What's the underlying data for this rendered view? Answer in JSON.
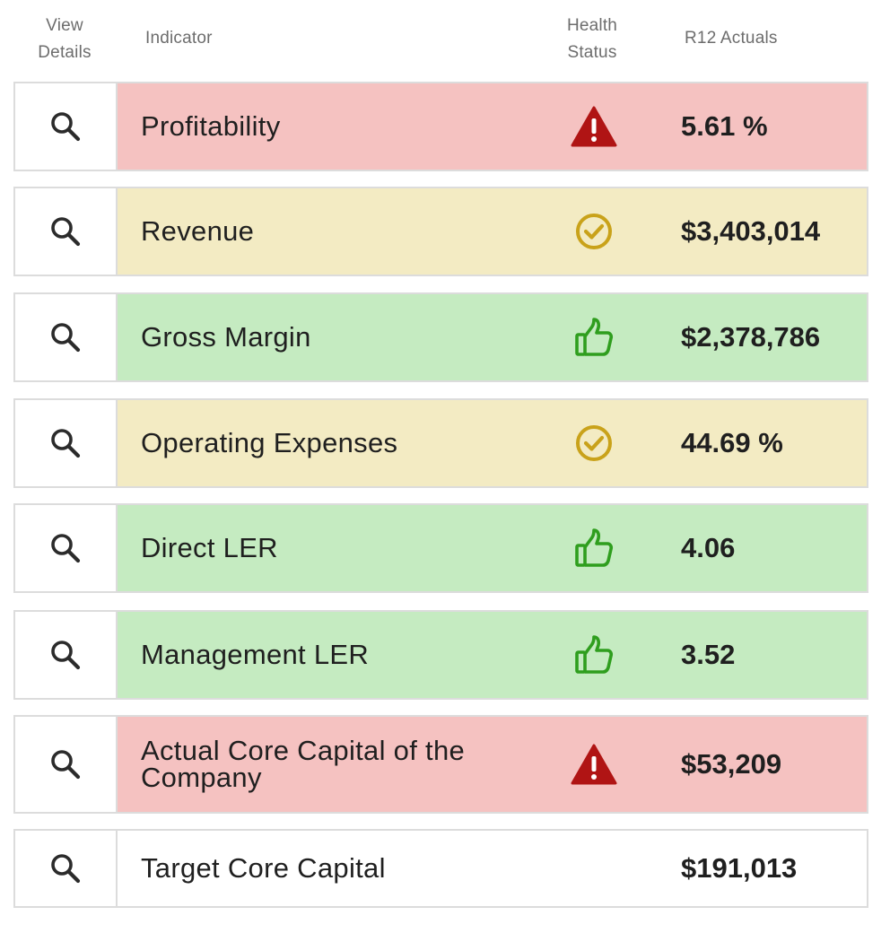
{
  "headers": {
    "view_details": "View\nDetails",
    "indicator": "Indicator",
    "health_status": "Health\nStatus",
    "r12_actuals": "R12 Actuals"
  },
  "colors": {
    "red": "#f5c2c1",
    "yellow": "#f3ebc3",
    "green": "#c5ebc1",
    "warning_icon": "#b01414",
    "check_icon": "#c9a21a",
    "thumb_icon": "#2f9e1e"
  },
  "rows": [
    {
      "indicator": "Profitability",
      "status": "red",
      "icon": "warning-icon",
      "actual": "5.61 %"
    },
    {
      "indicator": "Revenue",
      "status": "yellow",
      "icon": "check-circle-icon",
      "actual": "$3,403,014"
    },
    {
      "indicator": "Gross Margin",
      "status": "green",
      "icon": "thumbs-up-icon",
      "actual": "$2,378,786"
    },
    {
      "indicator": "Operating Expenses",
      "status": "yellow",
      "icon": "check-circle-icon",
      "actual": "44.69 %"
    },
    {
      "indicator": "Direct LER",
      "status": "green",
      "icon": "thumbs-up-icon",
      "actual": "4.06"
    },
    {
      "indicator": "Management LER",
      "status": "green",
      "icon": "thumbs-up-icon",
      "actual": "3.52"
    },
    {
      "indicator": "Actual Core Capital of the Company",
      "status": "red",
      "icon": "warning-icon",
      "actual": "$53,209"
    },
    {
      "indicator": "Target Core Capital",
      "status": "none",
      "icon": "",
      "actual": "$191,013"
    }
  ]
}
